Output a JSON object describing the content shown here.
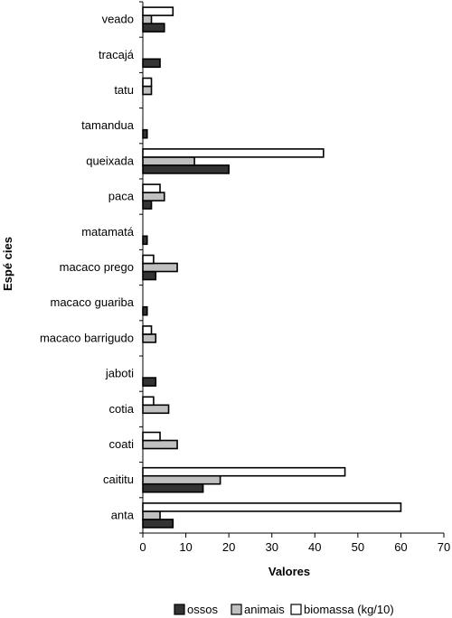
{
  "chart_data": {
    "type": "bar",
    "orientation": "horizontal",
    "categories": [
      "anta",
      "caititu",
      "coati",
      "cotia",
      "jaboti",
      "macaco barrigudo",
      "macaco guariba",
      "macaco prego",
      "matamatá",
      "paca",
      "queixada",
      "tamandua",
      "tatu",
      "tracajá",
      "veado"
    ],
    "series": [
      {
        "name": "ossos",
        "color": "#333333",
        "values": [
          7,
          14,
          0,
          0,
          3,
          0,
          1,
          3,
          1,
          2,
          20,
          1,
          0,
          4,
          5
        ]
      },
      {
        "name": "animais",
        "color": "#c0c0c0",
        "values": [
          4,
          18,
          8,
          6,
          0,
          3,
          0,
          8,
          0,
          5,
          12,
          0,
          2,
          0,
          2
        ]
      },
      {
        "name": "biomassa (kg/10)",
        "color": "#ffffff",
        "values": [
          60,
          47,
          4,
          2.5,
          0,
          2,
          0,
          2.5,
          0,
          4,
          42,
          0,
          2,
          0,
          7
        ]
      }
    ],
    "xlabel": "Valores",
    "ylabel": "Espé cies",
    "xlim": [
      0,
      70
    ],
    "xticks": [
      "0",
      "10",
      "20",
      "30",
      "40",
      "50",
      "60",
      "70"
    ],
    "grid": false,
    "legend_position": "bottom"
  }
}
